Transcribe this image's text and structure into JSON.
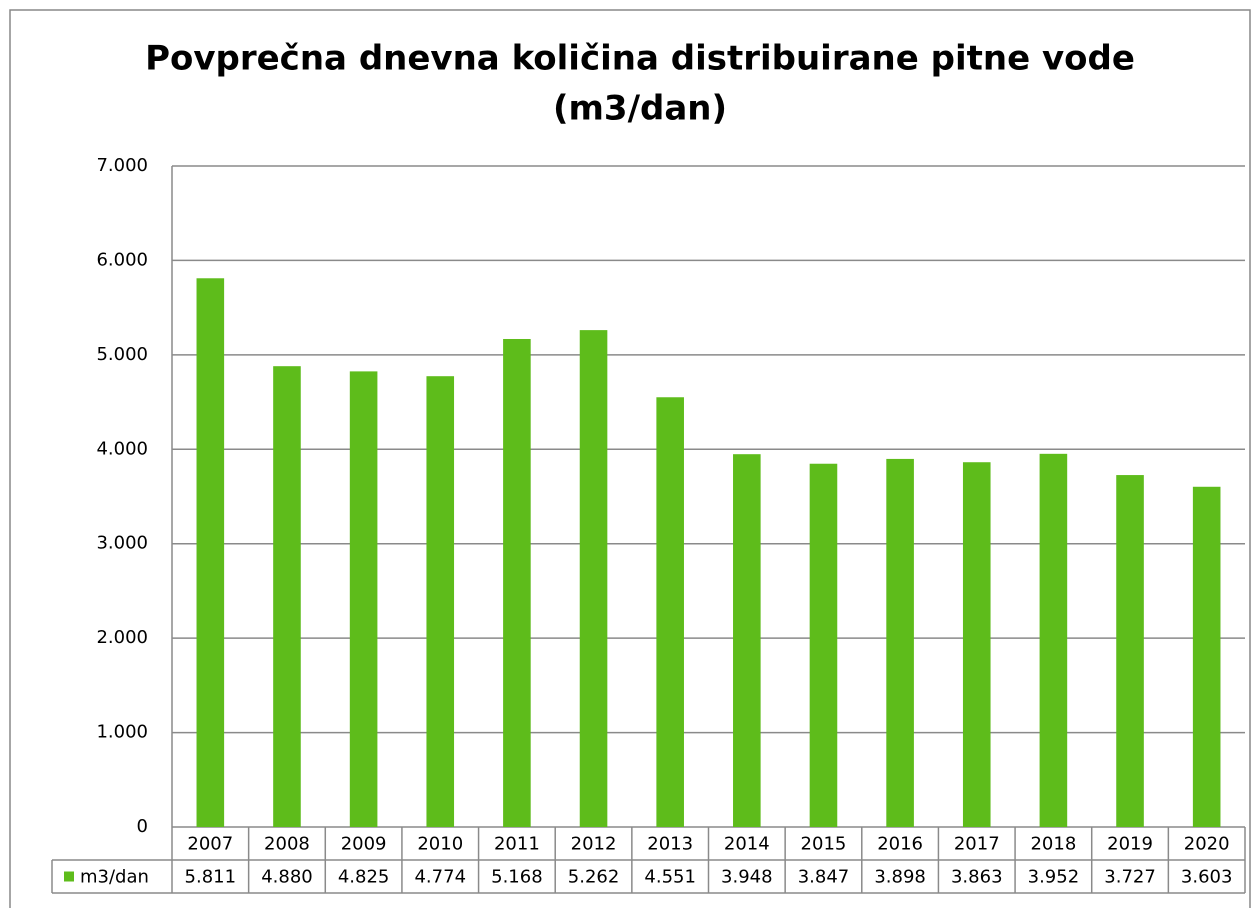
{
  "chart_data": {
    "type": "bar",
    "title": [
      "Povprečna dnevna količina distribuirane pitne vode",
      "(m3/dan)"
    ],
    "categories": [
      "2007",
      "2008",
      "2009",
      "2010",
      "2011",
      "2012",
      "2013",
      "2014",
      "2015",
      "2016",
      "2017",
      "2018",
      "2019",
      "2020"
    ],
    "series": [
      {
        "name": "m3/dan",
        "color": "#5ebc1b",
        "values": [
          5811,
          4880,
          4825,
          4774,
          5168,
          5262,
          4551,
          3948,
          3847,
          3898,
          3863,
          3952,
          3727,
          3603
        ],
        "value_labels": [
          "5.811",
          "4.880",
          "4.825",
          "4.774",
          "5.168",
          "5.262",
          "4.551",
          "3.948",
          "3.847",
          "3.898",
          "3.863",
          "3.952",
          "3.727",
          "3.603"
        ]
      }
    ],
    "ylim": [
      0,
      7000
    ],
    "yticks": [
      0,
      {
        "value": 1000,
        "label": "1.000"
      },
      {
        "value": 2000,
        "label": "2.000"
      },
      {
        "value": 3000,
        "label": "3.000"
      },
      {
        "value": 4000,
        "label": "4.000"
      },
      {
        "value": 5000,
        "label": "5.000"
      },
      {
        "value": 6000,
        "label": "6.000"
      },
      {
        "value": 7000,
        "label": "7.000"
      }
    ],
    "grid": true,
    "data_table": true
  }
}
